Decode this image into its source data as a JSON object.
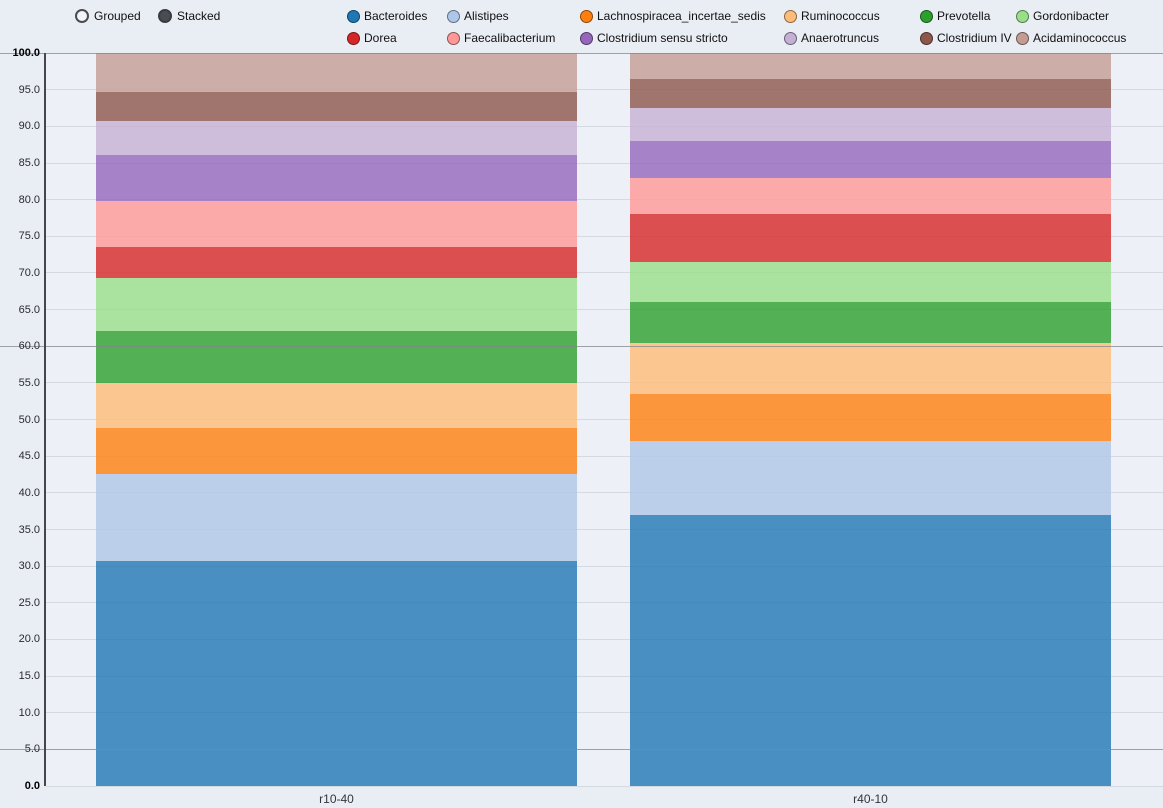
{
  "controls": {
    "modes": [
      {
        "label": "Grouped",
        "selected": false
      },
      {
        "label": "Stacked",
        "selected": true
      }
    ]
  },
  "chart_data": {
    "type": "bar",
    "stacked": true,
    "title": "",
    "legend_position": "top",
    "grid": true,
    "categories": [
      "r10-40",
      "r40-10"
    ],
    "series": [
      {
        "name": "Bacteroides",
        "color": "#1f77b4",
        "values": [
          30.7,
          37.0
        ]
      },
      {
        "name": "Alistipes",
        "color": "#aec7e8",
        "values": [
          11.8,
          10.0
        ]
      },
      {
        "name": "Lachnospiracea_incertae_sedis",
        "color": "#ff7f0e",
        "values": [
          6.3,
          6.5
        ]
      },
      {
        "name": "Ruminococcus",
        "color": "#ffbb78",
        "values": [
          6.2,
          7.0
        ]
      },
      {
        "name": "Prevotella",
        "color": "#2ca02c",
        "values": [
          7.1,
          5.5
        ]
      },
      {
        "name": "Gordonibacter",
        "color": "#98df8a",
        "values": [
          7.2,
          5.5
        ]
      },
      {
        "name": "Dorea",
        "color": "#d62728",
        "values": [
          4.2,
          6.5
        ]
      },
      {
        "name": "Faecalibacterium",
        "color": "#ff9896",
        "values": [
          6.3,
          5.0
        ]
      },
      {
        "name": "Clostridium sensu stricto",
        "color": "#9467bd",
        "values": [
          6.3,
          5.0
        ]
      },
      {
        "name": "Anaerotruncus",
        "color": "#c5b0d5",
        "values": [
          4.6,
          4.5
        ]
      },
      {
        "name": "Clostridium IV",
        "color": "#8c564b",
        "values": [
          4.0,
          4.0
        ]
      },
      {
        "name": "Acidaminococcus",
        "color": "#c49c94",
        "values": [
          5.3,
          3.5
        ]
      }
    ],
    "y_axis": {
      "min": 0,
      "max": 100,
      "tick_step": 5,
      "tick_format": "one_decimal",
      "bold_ticks": [
        0,
        100
      ],
      "major_gridlines": [
        5,
        60,
        100
      ]
    }
  }
}
